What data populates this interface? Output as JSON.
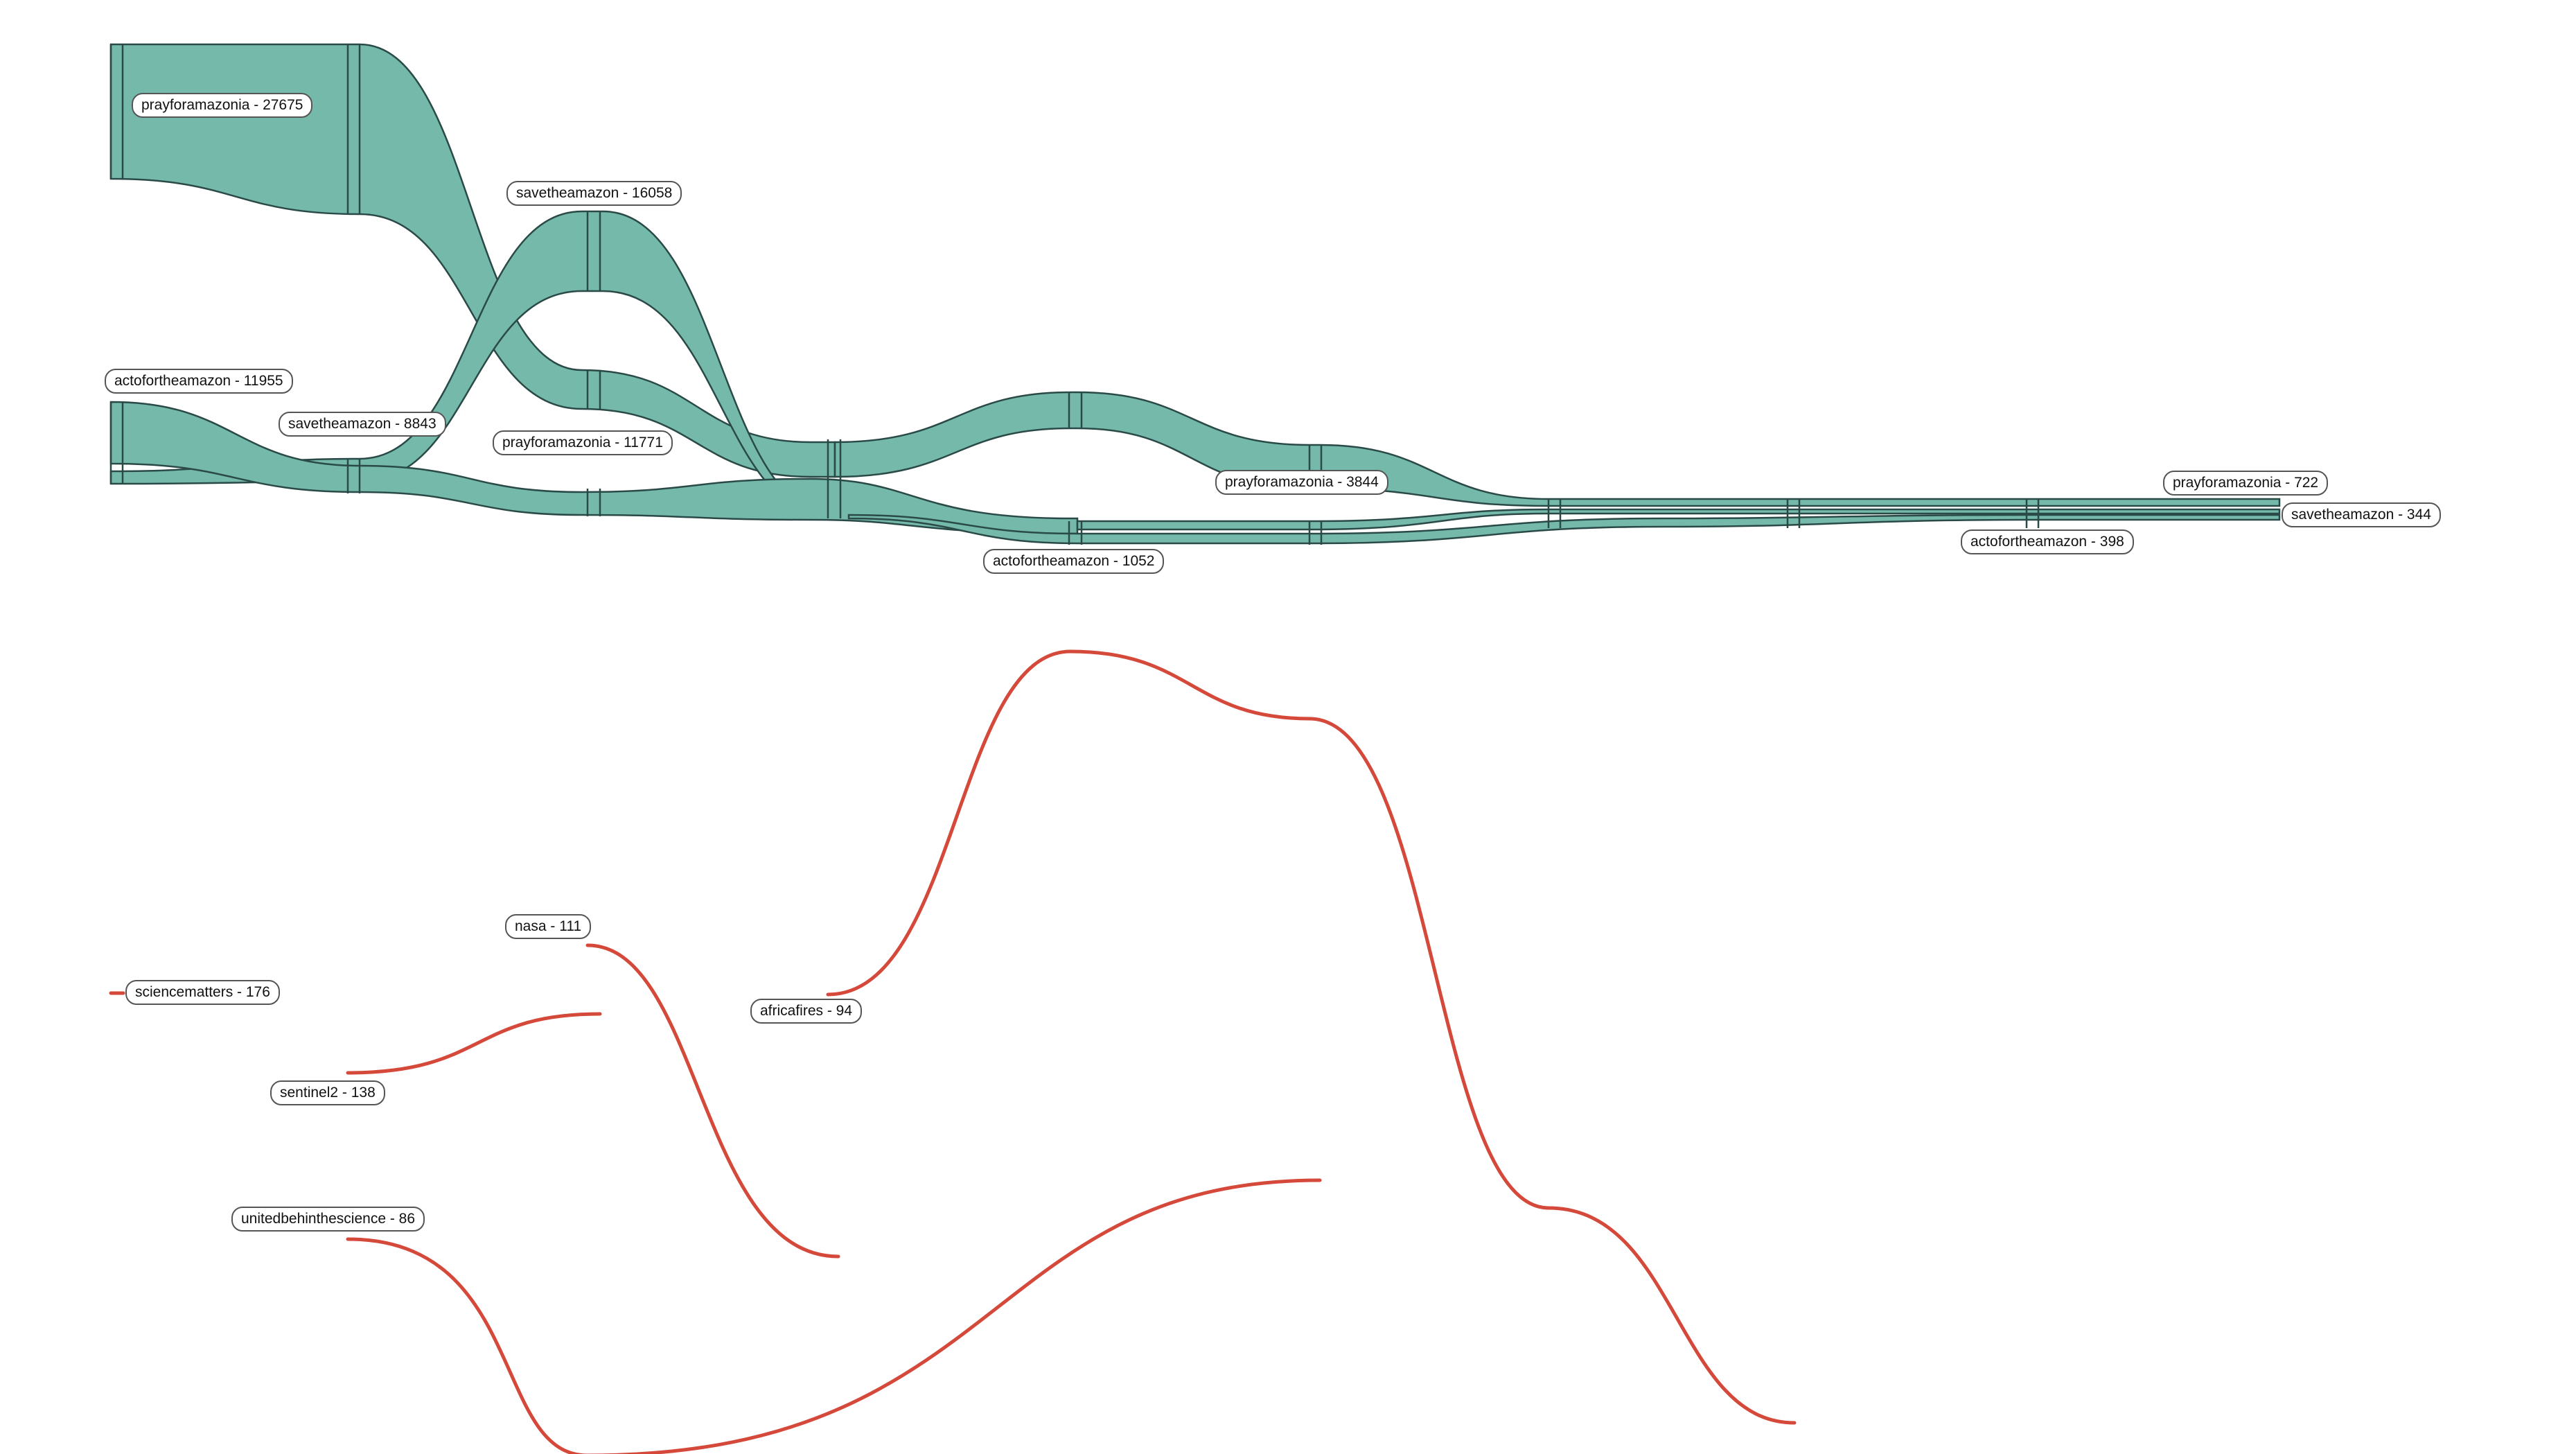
{
  "colors": {
    "stream_fill": "#75b9ab",
    "stream_stroke": "#2a4a47",
    "thread": "#d5493b",
    "label_border": "#555555"
  },
  "streams": [
    {
      "label": "prayforamazonia - 27675",
      "hashtag": "prayforamazonia",
      "count": 27675
    },
    {
      "label": "savetheamazon - 16058",
      "hashtag": "savetheamazon",
      "count": 16058
    },
    {
      "label": "actofortheamazon - 11955",
      "hashtag": "actofortheamazon",
      "count": 11955
    },
    {
      "label": "savetheamazon - 8843",
      "hashtag": "savetheamazon",
      "count": 8843
    },
    {
      "label": "prayforamazonia - 11771",
      "hashtag": "prayforamazonia",
      "count": 11771
    },
    {
      "label": "prayforamazonia - 3844",
      "hashtag": "prayforamazonia",
      "count": 3844
    },
    {
      "label": "actofortheamazon - 1052",
      "hashtag": "actofortheamazon",
      "count": 1052
    },
    {
      "label": "prayforamazonia - 722",
      "hashtag": "prayforamazonia",
      "count": 722
    },
    {
      "label": "actofortheamazon - 398",
      "hashtag": "actofortheamazon",
      "count": 398
    },
    {
      "label": "savetheamazon - 344",
      "hashtag": "savetheamazon",
      "count": 344
    }
  ],
  "threads": [
    {
      "label": "sciencematters - 176",
      "hashtag": "sciencematters",
      "count": 176
    },
    {
      "label": "nasa - 111",
      "hashtag": "nasa",
      "count": 111
    },
    {
      "label": "sentinel2 - 138",
      "hashtag": "sentinel2",
      "count": 138
    },
    {
      "label": "africafires - 94",
      "hashtag": "africafires",
      "count": 94
    },
    {
      "label": "unitedbehinthescience - 86",
      "hashtag": "unitedbehinthescience",
      "count": 86
    }
  ]
}
